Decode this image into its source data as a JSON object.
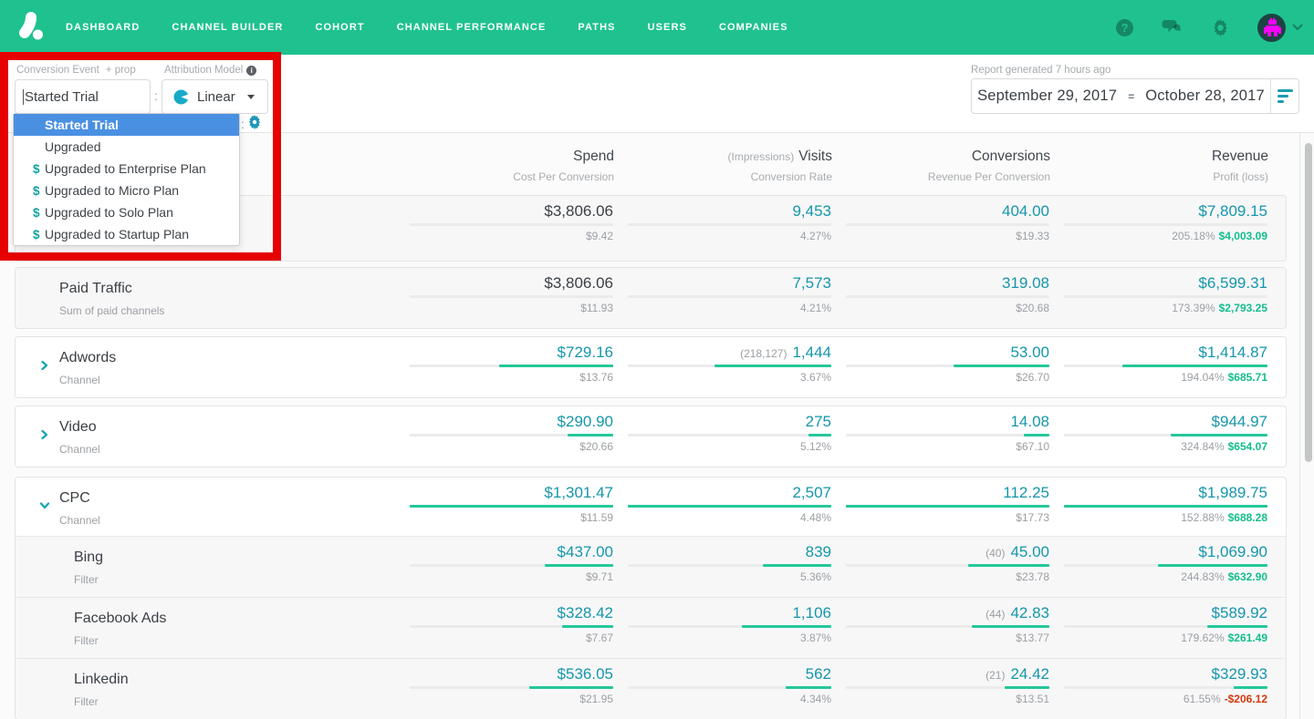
{
  "colors": {
    "nav_green": "#1FC28F",
    "teal_number": "#1596AB",
    "bar_green": "#25C79A",
    "profit_green": "#13BE8C",
    "loss_red": "#D23A0E",
    "selected_blue": "#4A90E2",
    "annotation_red": "#E60000"
  },
  "nav": {
    "items": [
      "DASHBOARD",
      "CHANNEL BUILDER",
      "COHORT",
      "CHANNEL PERFORMANCE",
      "PATHS",
      "USERS",
      "COMPANIES"
    ],
    "help_glyph": "?"
  },
  "filters": {
    "conversion_event": {
      "label": "Conversion Event",
      "addon": "+ prop",
      "value": "Started Trial"
    },
    "separator": ":",
    "attribution_model": {
      "label": "Attribution Model",
      "info_glyph": "i",
      "value": "Linear"
    },
    "mini_separator": ":",
    "dropdown": {
      "items": [
        {
          "label": "Started Trial",
          "selected": true,
          "money": false
        },
        {
          "label": "Upgraded",
          "selected": false,
          "money": false
        },
        {
          "label": "Upgraded to Enterprise Plan",
          "selected": false,
          "money": true
        },
        {
          "label": "Upgraded to Micro Plan",
          "selected": false,
          "money": true
        },
        {
          "label": "Upgraded to Solo Plan",
          "selected": false,
          "money": true
        },
        {
          "label": "Upgraded to Startup Plan",
          "selected": false,
          "money": true
        }
      ]
    },
    "report": {
      "generated": "Report generated 7 hours ago",
      "date_start": "September 29, 2017",
      "date_separator": "=",
      "date_end": "October 28, 2017"
    }
  },
  "table": {
    "columns": [
      {
        "label": "Spend",
        "prefix": "",
        "sub": "Cost Per Conversion"
      },
      {
        "label": "Visits",
        "prefix": "(Impressions)",
        "sub": "Conversion Rate"
      },
      {
        "label": "Conversions",
        "prefix": "",
        "sub": "Revenue Per Conversion"
      },
      {
        "label": "Revenue",
        "prefix": "",
        "sub": "Profit (loss)"
      }
    ],
    "cards": [
      {
        "kind": "summary",
        "rows": [
          {
            "type": "summary",
            "name": "",
            "sub": "",
            "chevron": "none",
            "spend": {
              "value": "$3,806.06",
              "sub": "$9.42",
              "bar": null
            },
            "visits": {
              "pre": "",
              "value": "9,453",
              "sub": "4.27%",
              "bar": null
            },
            "conversions": {
              "pre": "",
              "value": "404.00",
              "sub": "$19.33",
              "bar": null
            },
            "revenue": {
              "value": "$7,809.15",
              "pct": "205.18%",
              "profit": "$4,003.09",
              "bar": null
            }
          }
        ]
      },
      {
        "kind": "summary",
        "rows": [
          {
            "type": "summary",
            "name": "Paid Traffic",
            "sub": "Sum of paid channels",
            "chevron": "none",
            "spend": {
              "value": "$3,806.06",
              "sub": "$11.93",
              "bar": null
            },
            "visits": {
              "pre": "",
              "value": "7,573",
              "sub": "4.21%",
              "bar": null
            },
            "conversions": {
              "pre": "",
              "value": "319.08",
              "sub": "$20.68",
              "bar": null
            },
            "revenue": {
              "value": "$6,599.31",
              "pct": "173.39%",
              "profit": "$2,793.25",
              "bar": null
            }
          }
        ]
      },
      {
        "kind": "channel",
        "rows": [
          {
            "type": "channel",
            "name": "Adwords",
            "sub": "Channel",
            "chevron": "collapsed",
            "spend": {
              "value": "$729.16",
              "sub": "$13.76",
              "bar": 0.56
            },
            "visits": {
              "pre": "(218,127)",
              "value": "1,444",
              "sub": "3.67%",
              "bar": 0.576
            },
            "conversions": {
              "pre": "",
              "value": "53.00",
              "sub": "$26.70",
              "bar": 0.472
            },
            "revenue": {
              "value": "$1,414.87",
              "pct": "194.04%",
              "profit": "$685.71",
              "bar": 0.711
            }
          }
        ]
      },
      {
        "kind": "channel",
        "rows": [
          {
            "type": "channel",
            "name": "Video",
            "sub": "Channel",
            "chevron": "collapsed",
            "spend": {
              "value": "$290.90",
              "sub": "$20.66",
              "bar": 0.224
            },
            "visits": {
              "pre": "",
              "value": "275",
              "sub": "5.12%",
              "bar": 0.11
            },
            "conversions": {
              "pre": "",
              "value": "14.08",
              "sub": "$67.10",
              "bar": 0.125
            },
            "revenue": {
              "value": "$944.97",
              "pct": "324.84%",
              "profit": "$654.07",
              "bar": 0.475
            }
          }
        ]
      },
      {
        "kind": "group",
        "rows": [
          {
            "type": "channel",
            "name": "CPC",
            "sub": "Channel",
            "chevron": "expanded",
            "spend": {
              "value": "$1,301.47",
              "sub": "$11.59",
              "bar": 1
            },
            "visits": {
              "pre": "",
              "value": "2,507",
              "sub": "4.48%",
              "bar": 1
            },
            "conversions": {
              "pre": "",
              "value": "112.25",
              "sub": "$17.73",
              "bar": 1
            },
            "revenue": {
              "value": "$1,989.75",
              "pct": "152.88%",
              "profit": "$688.28",
              "bar": 1
            }
          },
          {
            "type": "filter",
            "name": "Bing",
            "sub": "Filter",
            "chevron": "none",
            "spend": {
              "value": "$437.00",
              "sub": "$9.71",
              "bar": 0.336
            },
            "visits": {
              "pre": "",
              "value": "839",
              "sub": "5.36%",
              "bar": 0.335
            },
            "conversions": {
              "pre": "(40)",
              "value": "45.00",
              "sub": "$23.78",
              "bar": 0.401
            },
            "revenue": {
              "value": "$1,069.90",
              "pct": "244.83%",
              "profit": "$632.90",
              "bar": 0.538
            }
          },
          {
            "type": "filter",
            "name": "Facebook Ads",
            "sub": "Filter",
            "chevron": "none",
            "spend": {
              "value": "$328.42",
              "sub": "$7.67",
              "bar": 0.252
            },
            "visits": {
              "pre": "",
              "value": "1,106",
              "sub": "3.87%",
              "bar": 0.441
            },
            "conversions": {
              "pre": "(44)",
              "value": "42.83",
              "sub": "$13.77",
              "bar": 0.382
            },
            "revenue": {
              "value": "$589.92",
              "pct": "179.62%",
              "profit": "$261.49",
              "bar": 0.297
            }
          },
          {
            "type": "filter",
            "name": "Linkedin",
            "sub": "Filter",
            "chevron": "none",
            "spend": {
              "value": "$536.05",
              "sub": "$21.95",
              "bar": 0.412
            },
            "visits": {
              "pre": "",
              "value": "562",
              "sub": "4.34%",
              "bar": 0.224
            },
            "conversions": {
              "pre": "(21)",
              "value": "24.42",
              "sub": "$13.51",
              "bar": 0.218
            },
            "revenue": {
              "value": "$329.93",
              "pct": "61.55%",
              "profit": "-$206.12",
              "bar": 0.166
            }
          }
        ]
      }
    ]
  }
}
